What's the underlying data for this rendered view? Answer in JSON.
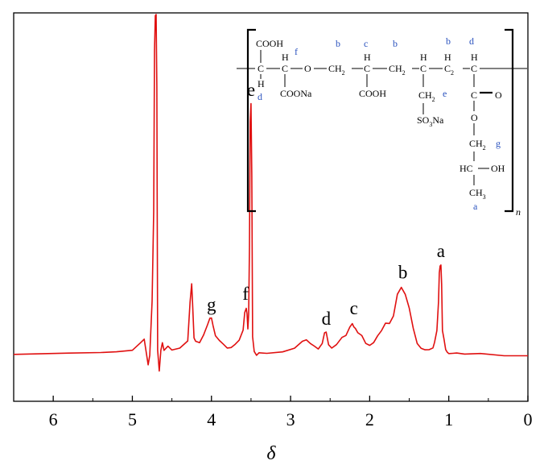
{
  "chart_data": {
    "type": "line",
    "title": "",
    "xlabel": "δ",
    "ylabel": "",
    "xlim": [
      6.5,
      0
    ],
    "x_reversed": true,
    "ylim": [
      0,
      1
    ],
    "grid": false,
    "x_ticks": [
      6,
      5,
      4,
      3,
      2,
      1,
      0
    ],
    "x_tick_labels": [
      "6",
      "5",
      "4",
      "3",
      "2",
      "1",
      "0"
    ],
    "line_color": "#e01010",
    "series": [
      {
        "x": [
          6.5,
          5.8,
          5.4,
          5.2,
          5.0,
          4.9,
          4.85,
          4.8,
          4.78,
          4.75,
          4.73,
          4.72,
          4.71,
          4.7,
          4.69,
          4.68,
          4.66,
          4.64,
          4.62,
          4.6,
          4.55,
          4.5,
          4.4,
          4.3,
          4.27,
          4.25,
          4.24,
          4.22,
          4.2,
          4.15,
          4.1,
          4.05,
          4.02,
          4.0,
          3.98,
          3.95,
          3.9,
          3.85,
          3.8,
          3.75,
          3.7,
          3.65,
          3.6,
          3.58,
          3.56,
          3.55,
          3.54,
          3.53,
          3.52,
          3.51,
          3.5,
          3.49,
          3.48,
          3.46,
          3.43,
          3.4,
          3.3,
          3.1,
          2.95,
          2.85,
          2.8,
          2.75,
          2.7,
          2.65,
          2.6,
          2.57,
          2.55,
          2.52,
          2.48,
          2.42,
          2.35,
          2.3,
          2.25,
          2.22,
          2.2,
          2.18,
          2.15,
          2.1,
          2.05,
          2.0,
          1.95,
          1.9,
          1.85,
          1.8,
          1.75,
          1.7,
          1.65,
          1.6,
          1.55,
          1.5,
          1.45,
          1.4,
          1.35,
          1.3,
          1.25,
          1.2,
          1.18,
          1.15,
          1.13,
          1.12,
          1.11,
          1.1,
          1.09,
          1.08,
          1.06,
          1.04,
          1.02,
          1.0,
          0.95,
          0.9,
          0.8,
          0.6,
          0.3,
          0.0
        ],
        "y": [
          0.05,
          0.05,
          0.055,
          0.055,
          0.06,
          0.08,
          0.09,
          0.02,
          0.05,
          0.2,
          0.45,
          0.9,
          1.0,
          1.0,
          0.8,
          0.06,
          0.0,
          0.06,
          0.08,
          0.06,
          0.07,
          0.06,
          0.065,
          0.09,
          0.2,
          0.25,
          0.2,
          0.1,
          0.09,
          0.085,
          0.1,
          0.13,
          0.15,
          0.15,
          0.13,
          0.1,
          0.085,
          0.075,
          0.07,
          0.07,
          0.08,
          0.09,
          0.12,
          0.17,
          0.18,
          0.16,
          0.12,
          0.16,
          0.35,
          0.7,
          0.75,
          0.55,
          0.1,
          0.06,
          0.05,
          0.055,
          0.055,
          0.06,
          0.07,
          0.09,
          0.09,
          0.08,
          0.07,
          0.065,
          0.08,
          0.11,
          0.11,
          0.08,
          0.07,
          0.08,
          0.1,
          0.105,
          0.13,
          0.14,
          0.13,
          0.12,
          0.11,
          0.1,
          0.08,
          0.075,
          0.08,
          0.1,
          0.12,
          0.14,
          0.14,
          0.16,
          0.22,
          0.24,
          0.22,
          0.18,
          0.12,
          0.08,
          0.065,
          0.06,
          0.06,
          0.065,
          0.08,
          0.12,
          0.2,
          0.28,
          0.3,
          0.3,
          0.25,
          0.12,
          0.09,
          0.06,
          0.055,
          0.05,
          0.05,
          0.05,
          0.05,
          0.05,
          0.05,
          0.05
        ]
      }
    ],
    "annotations": [
      {
        "label": "a",
        "x": 1.1,
        "y": 0.3
      },
      {
        "label": "b",
        "x": 1.58,
        "y": 0.24
      },
      {
        "label": "c",
        "x": 2.2,
        "y": 0.14
      },
      {
        "label": "d",
        "x": 2.55,
        "y": 0.11
      },
      {
        "label": "e",
        "x": 3.5,
        "y": 0.75
      },
      {
        "label": "f",
        "x": 3.57,
        "y": 0.18
      },
      {
        "label": "g",
        "x": 4.0,
        "y": 0.15
      }
    ]
  },
  "structure": {
    "frag1": {
      "top": "COOH",
      "c": "C",
      "h": "H",
      "label_below": "d"
    },
    "frag2": {
      "h": "H",
      "c": "C",
      "bottom": "COONa",
      "label": "f"
    },
    "o_link": "O",
    "ch2_1": {
      "text": "CH",
      "sub": "2",
      "label": "b"
    },
    "frag3": {
      "h": "H",
      "c": "C",
      "bottom": "COOH",
      "label": "c"
    },
    "ch2_2": {
      "text": "CH",
      "sub": "2",
      "label": "b"
    },
    "frag4": {
      "h": "H",
      "c": "C",
      "side": "CH",
      "side_sub": "2",
      "side_label": "e",
      "bottom": "SO",
      "bottom_sub": "3",
      "bottom_tail": "Na"
    },
    "ch2_3": {
      "text": "CH",
      "sub": "2",
      "label": "b"
    },
    "frag5": {
      "h": "H",
      "c": "C",
      "label": "d",
      "c2": "C",
      "o_dbl": "O",
      "o_ester": "O",
      "ch2": "CH",
      "ch2_sub": "2",
      "ch2_label": "g",
      "hc": "HC",
      "oh": "OH",
      "ch3": "CH",
      "ch3_sub": "3",
      "ch3_label": "a"
    },
    "repeat": "n",
    "label_color": "#2a52be"
  }
}
